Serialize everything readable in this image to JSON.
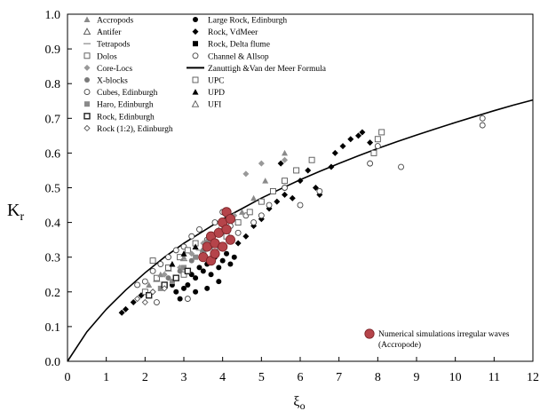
{
  "chart_data": {
    "type": "scatter",
    "xlabel": "ξo",
    "ylabel": "Kr",
    "xlim": [
      0,
      12
    ],
    "ylim": [
      0,
      1.0
    ],
    "x_ticks": [
      "0",
      "1",
      "2",
      "3",
      "4",
      "5",
      "6",
      "7",
      "8",
      "9",
      "10",
      "11",
      "12"
    ],
    "y_ticks": [
      "0.0",
      "0.1",
      "0.2",
      "0.3",
      "0.4",
      "0.5",
      "0.6",
      "0.7",
      "0.8",
      "0.9",
      "1.0"
    ],
    "grid": false,
    "legend_left": [
      {
        "label": "Accropods",
        "marker": "triangle-gray"
      },
      {
        "label": "Antifer",
        "marker": "triangle-open"
      },
      {
        "label": "Tetrapods",
        "marker": "dash"
      },
      {
        "label": "Dolos",
        "marker": "square-open"
      },
      {
        "label": "Core-Locs",
        "marker": "diamond-gray"
      },
      {
        "label": "X-blocks",
        "marker": "circle-gray"
      },
      {
        "label": "Cubes, Edinburgh",
        "marker": "circle-open"
      },
      {
        "label": "Haro, Edinburgh",
        "marker": "square-gray"
      },
      {
        "label": "Rock, Edinburgh",
        "marker": "square-open-bold"
      },
      {
        "label": "Rock (1:2),  Edinburgh",
        "marker": "diamond-open"
      }
    ],
    "legend_right": [
      {
        "label": "Large Rock,  Edinburgh",
        "marker": "circle-black"
      },
      {
        "label": "Rock, VdMeer",
        "marker": "diamond-black"
      },
      {
        "label": "Rock,  Delta flume",
        "marker": "square-black"
      },
      {
        "label": "Channel  & Allsop",
        "marker": "circle-open"
      },
      {
        "label": "Zanuttigh &Van der Meer Formula",
        "marker": "line"
      },
      {
        "label": "UPC",
        "marker": "square-open"
      },
      {
        "label": "UPD",
        "marker": "triangle-black"
      },
      {
        "label": "UFI",
        "marker": "triangle-open"
      }
    ],
    "legend_bottom_right": {
      "label": "Numerical simulations irregular waves (Accropode)",
      "marker": "circle-red"
    },
    "formula_curve": {
      "name": "Zanuttigh &Van der Meer Formula",
      "x": [
        0,
        0.5,
        1,
        1.5,
        2,
        2.5,
        3,
        3.5,
        4,
        4.5,
        5,
        5.5,
        6,
        6.5,
        7,
        7.5,
        8,
        8.5,
        9,
        9.5,
        10,
        10.5,
        11,
        11.5,
        12
      ],
      "y": [
        0.0,
        0.085,
        0.15,
        0.205,
        0.255,
        0.3,
        0.34,
        0.375,
        0.41,
        0.44,
        0.47,
        0.497,
        0.523,
        0.547,
        0.57,
        0.592,
        0.613,
        0.633,
        0.652,
        0.67,
        0.688,
        0.705,
        0.722,
        0.738,
        0.753
      ]
    },
    "series": [
      {
        "name": "Large Rock,  Edinburgh",
        "marker": "circle-black",
        "points": [
          [
            2.8,
            0.2
          ],
          [
            2.9,
            0.18
          ],
          [
            3.0,
            0.21
          ],
          [
            3.1,
            0.22
          ],
          [
            3.2,
            0.25
          ],
          [
            3.3,
            0.24
          ],
          [
            3.4,
            0.27
          ],
          [
            3.5,
            0.26
          ],
          [
            3.6,
            0.28
          ],
          [
            3.7,
            0.25
          ],
          [
            3.8,
            0.3
          ],
          [
            3.9,
            0.27
          ],
          [
            4.0,
            0.29
          ],
          [
            4.1,
            0.31
          ],
          [
            4.2,
            0.28
          ],
          [
            3.9,
            0.23
          ],
          [
            4.3,
            0.3
          ],
          [
            3.3,
            0.2
          ],
          [
            2.7,
            0.22
          ],
          [
            3.6,
            0.21
          ]
        ]
      },
      {
        "name": "Rock, VdMeer",
        "marker": "diamond-black",
        "points": [
          [
            1.4,
            0.14
          ],
          [
            1.5,
            0.15
          ],
          [
            1.7,
            0.17
          ],
          [
            1.9,
            0.19
          ],
          [
            2.2,
            0.2
          ],
          [
            2.5,
            0.22
          ],
          [
            4.4,
            0.34
          ],
          [
            4.6,
            0.36
          ],
          [
            4.8,
            0.39
          ],
          [
            5.0,
            0.41
          ],
          [
            5.2,
            0.44
          ],
          [
            5.4,
            0.46
          ],
          [
            5.6,
            0.48
          ],
          [
            5.8,
            0.47
          ],
          [
            6.0,
            0.52
          ],
          [
            6.2,
            0.55
          ],
          [
            6.4,
            0.5
          ],
          [
            6.5,
            0.48
          ],
          [
            6.9,
            0.6
          ],
          [
            7.1,
            0.62
          ],
          [
            7.3,
            0.64
          ],
          [
            7.5,
            0.65
          ],
          [
            7.6,
            0.66
          ],
          [
            7.8,
            0.63
          ],
          [
            6.8,
            0.56
          ],
          [
            5.5,
            0.57
          ]
        ]
      },
      {
        "name": "Channel  & Allsop",
        "marker": "circle-open",
        "points": [
          [
            1.8,
            0.22
          ],
          [
            2.0,
            0.23
          ],
          [
            2.2,
            0.26
          ],
          [
            2.4,
            0.28
          ],
          [
            2.6,
            0.3
          ],
          [
            2.8,
            0.32
          ],
          [
            3.0,
            0.33
          ],
          [
            3.2,
            0.36
          ],
          [
            3.4,
            0.38
          ],
          [
            3.6,
            0.35
          ],
          [
            3.8,
            0.4
          ],
          [
            4.0,
            0.43
          ],
          [
            4.2,
            0.39
          ],
          [
            4.4,
            0.37
          ],
          [
            4.6,
            0.42
          ],
          [
            4.8,
            0.4
          ],
          [
            5.0,
            0.42
          ],
          [
            5.2,
            0.45
          ],
          [
            5.6,
            0.5
          ],
          [
            6.0,
            0.45
          ],
          [
            6.5,
            0.49
          ],
          [
            7.8,
            0.57
          ],
          [
            8.0,
            0.62
          ],
          [
            8.6,
            0.56
          ],
          [
            10.7,
            0.7
          ],
          [
            10.7,
            0.68
          ],
          [
            3.1,
            0.18
          ],
          [
            2.3,
            0.17
          ]
        ]
      },
      {
        "name": "UPC",
        "marker": "square-open",
        "points": [
          [
            2.0,
            0.2
          ],
          [
            2.3,
            0.24
          ],
          [
            2.6,
            0.27
          ],
          [
            2.9,
            0.3
          ],
          [
            3.1,
            0.32
          ],
          [
            3.3,
            0.34
          ],
          [
            3.5,
            0.31
          ],
          [
            3.8,
            0.33
          ],
          [
            4.1,
            0.36
          ],
          [
            4.4,
            0.4
          ],
          [
            4.7,
            0.43
          ],
          [
            5.0,
            0.46
          ],
          [
            5.3,
            0.49
          ],
          [
            5.6,
            0.52
          ],
          [
            5.9,
            0.55
          ],
          [
            6.3,
            0.58
          ],
          [
            7.9,
            0.6
          ],
          [
            8.0,
            0.64
          ],
          [
            8.1,
            0.66
          ],
          [
            2.2,
            0.29
          ],
          [
            3.0,
            0.25
          ]
        ]
      },
      {
        "name": "Accropods",
        "marker": "triangle-gray",
        "points": [
          [
            2.1,
            0.22
          ],
          [
            2.4,
            0.25
          ],
          [
            2.7,
            0.28
          ],
          [
            3.0,
            0.3
          ],
          [
            3.3,
            0.33
          ],
          [
            3.6,
            0.35
          ],
          [
            3.9,
            0.38
          ],
          [
            4.2,
            0.41
          ],
          [
            4.5,
            0.43
          ],
          [
            4.8,
            0.47
          ],
          [
            5.1,
            0.52
          ],
          [
            5.6,
            0.6
          ]
        ]
      },
      {
        "name": "Core-Locs",
        "marker": "diamond-gray",
        "points": [
          [
            2.5,
            0.25
          ],
          [
            2.9,
            0.27
          ],
          [
            3.2,
            0.31
          ],
          [
            3.5,
            0.34
          ],
          [
            4.0,
            0.38
          ],
          [
            4.3,
            0.42
          ],
          [
            4.6,
            0.54
          ],
          [
            5.0,
            0.57
          ],
          [
            5.6,
            0.58
          ]
        ]
      },
      {
        "name": "X-blocks",
        "marker": "circle-gray",
        "points": [
          [
            2.6,
            0.24
          ],
          [
            2.9,
            0.26
          ],
          [
            3.2,
            0.29
          ],
          [
            3.5,
            0.32
          ],
          [
            3.8,
            0.34
          ]
        ]
      },
      {
        "name": "Haro, Edinburgh",
        "marker": "square-gray",
        "points": [
          [
            2.4,
            0.21
          ],
          [
            2.7,
            0.23
          ],
          [
            3.0,
            0.27
          ],
          [
            3.3,
            0.3
          ]
        ]
      },
      {
        "name": "Rock, Edinburgh",
        "marker": "square-open-bold",
        "points": [
          [
            2.1,
            0.19
          ],
          [
            2.5,
            0.22
          ],
          [
            2.8,
            0.24
          ],
          [
            3.1,
            0.26
          ]
        ]
      },
      {
        "name": "Rock (1:2),  Edinburgh",
        "marker": "diamond-open",
        "points": [
          [
            1.8,
            0.18
          ],
          [
            2.0,
            0.17
          ],
          [
            2.2,
            0.2
          ],
          [
            2.5,
            0.21
          ]
        ]
      },
      {
        "name": "Tetrapods",
        "marker": "dash",
        "points": [
          [
            2.3,
            0.23
          ],
          [
            2.6,
            0.26
          ],
          [
            3.0,
            0.29
          ],
          [
            3.4,
            0.32
          ]
        ]
      },
      {
        "name": "UPD",
        "marker": "triangle-black",
        "points": [
          [
            2.7,
            0.28
          ],
          [
            3.0,
            0.31
          ],
          [
            3.3,
            0.33
          ]
        ]
      },
      {
        "name": "Numerical simulations irregular waves (Accropode)",
        "marker": "circle-red",
        "points": [
          [
            3.5,
            0.3
          ],
          [
            3.6,
            0.33
          ],
          [
            3.7,
            0.36
          ],
          [
            3.7,
            0.29
          ],
          [
            3.8,
            0.34
          ],
          [
            3.9,
            0.37
          ],
          [
            4.0,
            0.33
          ],
          [
            4.0,
            0.4
          ],
          [
            4.1,
            0.38
          ],
          [
            4.1,
            0.43
          ],
          [
            4.2,
            0.35
          ],
          [
            4.2,
            0.41
          ],
          [
            3.8,
            0.31
          ]
        ]
      }
    ]
  }
}
